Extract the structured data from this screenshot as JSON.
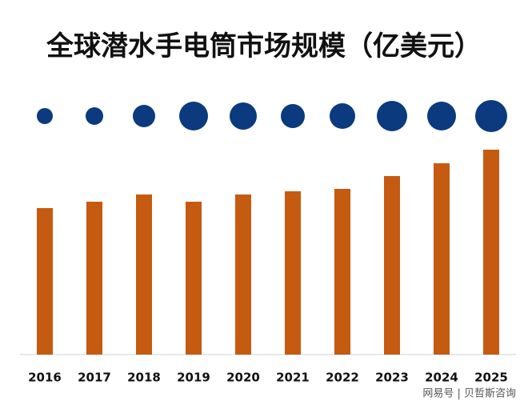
{
  "chart_data": {
    "type": "bar",
    "title": "全球潜水手电筒市场规模（亿美元）",
    "categories": [
      "2016",
      "2017",
      "2018",
      "2019",
      "2020",
      "2021",
      "2022",
      "2023",
      "2024",
      "2025"
    ],
    "series": [
      {
        "color": "#c55a11",
        "values": [
          183,
          191,
          200,
          191,
          200,
          204,
          207,
          223,
          239,
          256
        ]
      },
      {
        "color": "#0b3a7e",
        "values": [
          10,
          11,
          14,
          18,
          17,
          15,
          16,
          19,
          18,
          20
        ]
      }
    ],
    "watermark": "网易号 | 贝哲斯咨询"
  }
}
